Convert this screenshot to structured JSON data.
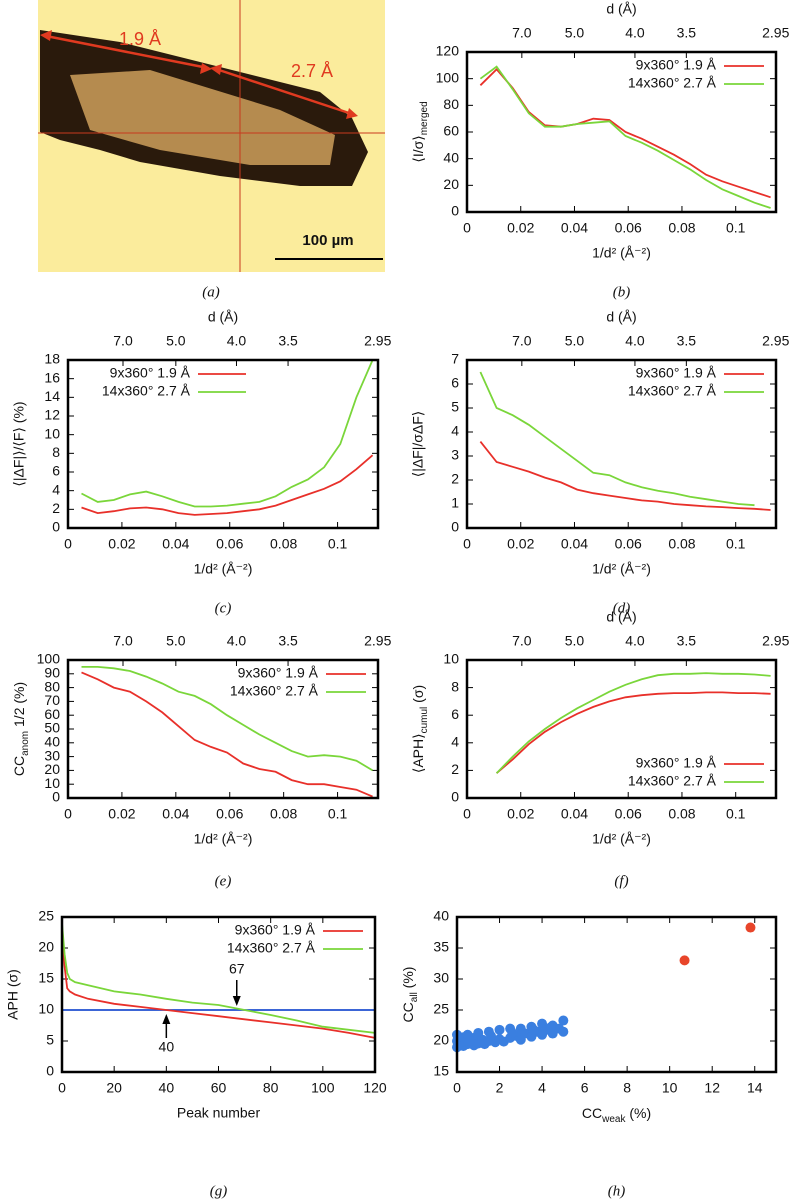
{
  "image": {
    "labels": [
      "1.9 Å",
      "2.7 Å"
    ],
    "scale_bar": "100 µm",
    "caption": "(a)"
  },
  "chart_data": [
    {
      "type": "line",
      "caption": "(b)",
      "xlabel": "1/d² (Å⁻²)",
      "ylabel": [
        {
          "text": "⟨I/σ⟩"
        },
        {
          "text": "merged",
          "sub": true
        }
      ],
      "x2label": "d (Å)",
      "x2ticks": [
        {
          "value": 0.020408,
          "label": "7.0"
        },
        {
          "value": 0.04,
          "label": "5.0"
        },
        {
          "value": 0.0625,
          "label": "4.0"
        },
        {
          "value": 0.081633,
          "label": "3.5"
        },
        {
          "value": 0.11491,
          "label": "2.95"
        }
      ],
      "xlim": [
        0,
        0.115
      ],
      "xticks": [
        0,
        0.02,
        0.04,
        0.06,
        0.08,
        0.1
      ],
      "ylim": [
        0,
        120
      ],
      "yticks": [
        0,
        20,
        40,
        60,
        80,
        100,
        120
      ],
      "legend": "upper right",
      "x": [
        0.005,
        0.011,
        0.017,
        0.023,
        0.029,
        0.035,
        0.041,
        0.047,
        0.053,
        0.059,
        0.065,
        0.071,
        0.077,
        0.083,
        0.089,
        0.095,
        0.101,
        0.107,
        0.113
      ],
      "series": [
        {
          "name": "9x360° 1.9 Å",
          "color": "#e8302a",
          "values": [
            95,
            107,
            93,
            75,
            65,
            64,
            66,
            70,
            69,
            60,
            55,
            49,
            43,
            36,
            28,
            23,
            19,
            15,
            11
          ]
        },
        {
          "name": "14x360° 2.7 Å",
          "color": "#7ad63a",
          "values": [
            100,
            109,
            92,
            74,
            64,
            64,
            66,
            67,
            68,
            57,
            52,
            46,
            39,
            32,
            24,
            17,
            12,
            7,
            3
          ]
        }
      ]
    },
    {
      "type": "line",
      "caption": "(c)",
      "xlabel": "1/d² (Å⁻²)",
      "ylabel": "⟨|ΔF|⟩/⟨F⟩ (%)",
      "x2label": "d (Å)",
      "x2ticks": [
        {
          "value": 0.020408,
          "label": "7.0"
        },
        {
          "value": 0.04,
          "label": "5.0"
        },
        {
          "value": 0.0625,
          "label": "4.0"
        },
        {
          "value": 0.081633,
          "label": "3.5"
        },
        {
          "value": 0.11491,
          "label": "2.95"
        }
      ],
      "xlim": [
        0,
        0.115
      ],
      "xticks": [
        0,
        0.02,
        0.04,
        0.06,
        0.08,
        0.1
      ],
      "ylim": [
        0,
        18
      ],
      "yticks": [
        0,
        2,
        4,
        6,
        8,
        10,
        12,
        14,
        16,
        18
      ],
      "legend": "upper left",
      "x": [
        0.005,
        0.011,
        0.017,
        0.023,
        0.029,
        0.035,
        0.041,
        0.047,
        0.053,
        0.059,
        0.065,
        0.071,
        0.077,
        0.083,
        0.089,
        0.095,
        0.101,
        0.107,
        0.113
      ],
      "series": [
        {
          "name": "9x360° 1.9 Å",
          "color": "#e8302a",
          "values": [
            2.2,
            1.6,
            1.8,
            2.1,
            2.2,
            2.0,
            1.6,
            1.4,
            1.5,
            1.6,
            1.8,
            2.0,
            2.4,
            3.0,
            3.6,
            4.2,
            5.0,
            6.3,
            7.8
          ]
        },
        {
          "name": "14x360° 2.7 Å",
          "color": "#7ad63a",
          "values": [
            3.7,
            2.8,
            3.0,
            3.6,
            3.9,
            3.4,
            2.8,
            2.3,
            2.3,
            2.4,
            2.6,
            2.8,
            3.4,
            4.4,
            5.2,
            6.5,
            9,
            14,
            18
          ]
        }
      ]
    },
    {
      "type": "line",
      "caption": "(d)",
      "xlabel": "1/d² (Å⁻²)",
      "ylabel": "⟨|ΔF|/σΔF⟩",
      "x2label": "d (Å)",
      "x2ticks": [
        {
          "value": 0.020408,
          "label": "7.0"
        },
        {
          "value": 0.04,
          "label": "5.0"
        },
        {
          "value": 0.0625,
          "label": "4.0"
        },
        {
          "value": 0.081633,
          "label": "3.5"
        },
        {
          "value": 0.11491,
          "label": "2.95"
        }
      ],
      "xlim": [
        0,
        0.115
      ],
      "xticks": [
        0,
        0.02,
        0.04,
        0.06,
        0.08,
        0.1
      ],
      "ylim": [
        0,
        7
      ],
      "yticks": [
        0,
        1,
        2,
        3,
        4,
        5,
        6,
        7
      ],
      "legend": "upper right",
      "x": [
        0.005,
        0.011,
        0.017,
        0.023,
        0.029,
        0.035,
        0.041,
        0.047,
        0.053,
        0.059,
        0.065,
        0.071,
        0.077,
        0.083,
        0.089,
        0.095,
        0.101,
        0.107,
        0.113
      ],
      "series": [
        {
          "name": "9x360° 1.9 Å",
          "color": "#e8302a",
          "values": [
            3.6,
            2.75,
            2.55,
            2.35,
            2.1,
            1.9,
            1.6,
            1.45,
            1.35,
            1.25,
            1.15,
            1.1,
            1.0,
            0.95,
            0.9,
            0.87,
            0.83,
            0.8,
            0.75
          ]
        },
        {
          "name": "14x360° 2.7 Å",
          "color": "#7ad63a",
          "values": [
            6.5,
            5.0,
            4.7,
            4.3,
            3.8,
            3.3,
            2.8,
            2.3,
            2.2,
            1.9,
            1.7,
            1.55,
            1.45,
            1.3,
            1.2,
            1.1,
            1.0,
            0.95,
            null
          ]
        }
      ]
    },
    {
      "type": "line",
      "caption": "(e)",
      "xlabel": "1/d² (Å⁻²)",
      "ylabel": [
        {
          "text": "CC"
        },
        {
          "text": "anom",
          "sub": true
        },
        {
          "text": " 1/2 (%)"
        }
      ],
      "x2ticks": [
        {
          "value": 0.020408,
          "label": "7.0"
        },
        {
          "value": 0.04,
          "label": "5.0"
        },
        {
          "value": 0.0625,
          "label": "4.0"
        },
        {
          "value": 0.081633,
          "label": "3.5"
        },
        {
          "value": 0.11491,
          "label": "2.95"
        }
      ],
      "xlim": [
        0,
        0.115
      ],
      "xticks": [
        0,
        0.02,
        0.04,
        0.06,
        0.08,
        0.1
      ],
      "ylim": [
        0,
        100
      ],
      "yticks": [
        0,
        10,
        20,
        30,
        40,
        50,
        60,
        70,
        80,
        90,
        100
      ],
      "legend": "upper right",
      "x": [
        0.005,
        0.011,
        0.017,
        0.023,
        0.029,
        0.035,
        0.041,
        0.047,
        0.053,
        0.059,
        0.065,
        0.071,
        0.077,
        0.083,
        0.089,
        0.095,
        0.101,
        0.107,
        0.113
      ],
      "series": [
        {
          "name": "9x360° 1.9 Å",
          "color": "#e8302a",
          "values": [
            91,
            86,
            80,
            77,
            70,
            62,
            52,
            42,
            37,
            33,
            25,
            21,
            19,
            13,
            10,
            10,
            8,
            6,
            1
          ]
        },
        {
          "name": "14x360° 2.7 Å",
          "color": "#7ad63a",
          "values": [
            95,
            95,
            94,
            92,
            88,
            83,
            77,
            74,
            68,
            60,
            53,
            46,
            40,
            34,
            30,
            31,
            30,
            27,
            20
          ]
        }
      ]
    },
    {
      "type": "line",
      "caption": "(f)",
      "xlabel": "1/d² (Å⁻²)",
      "ylabel": [
        {
          "text": "⟨APH⟩"
        },
        {
          "text": "cumul",
          "sub": true
        },
        {
          "text": " (σ)"
        }
      ],
      "x2label": "d (Å)",
      "x2ticks": [
        {
          "value": 0.020408,
          "label": "7.0"
        },
        {
          "value": 0.04,
          "label": "5.0"
        },
        {
          "value": 0.0625,
          "label": "4.0"
        },
        {
          "value": 0.081633,
          "label": "3.5"
        },
        {
          "value": 0.11491,
          "label": "2.95"
        }
      ],
      "xlim": [
        0,
        0.115
      ],
      "xticks": [
        0,
        0.02,
        0.04,
        0.06,
        0.08,
        0.1
      ],
      "ylim": [
        0,
        10
      ],
      "yticks": [
        0,
        2,
        4,
        6,
        8,
        10
      ],
      "legend": "lower right",
      "x": [
        0.005,
        0.011,
        0.017,
        0.023,
        0.029,
        0.035,
        0.041,
        0.047,
        0.053,
        0.059,
        0.065,
        0.071,
        0.077,
        0.083,
        0.089,
        0.095,
        0.101,
        0.107,
        0.113
      ],
      "series": [
        {
          "name": "9x360° 1.9 Å",
          "color": "#e8302a",
          "values": [
            null,
            1.8,
            2.8,
            3.9,
            4.8,
            5.5,
            6.1,
            6.6,
            7.0,
            7.3,
            7.45,
            7.55,
            7.6,
            7.6,
            7.65,
            7.65,
            7.6,
            7.6,
            7.55
          ]
        },
        {
          "name": "14x360° 2.7 Å",
          "color": "#7ad63a",
          "values": [
            null,
            1.8,
            3.0,
            4.1,
            5.0,
            5.8,
            6.5,
            7.1,
            7.7,
            8.2,
            8.6,
            8.9,
            9.0,
            9.0,
            9.05,
            9.0,
            9.0,
            8.95,
            8.85
          ]
        }
      ]
    },
    {
      "type": "line",
      "caption": "(g)",
      "xlabel": "Peak number",
      "ylabel": "APH (σ)",
      "xlim": [
        0,
        120
      ],
      "xticks": [
        0,
        20,
        40,
        60,
        80,
        100,
        120
      ],
      "ylim": [
        0,
        25
      ],
      "yticks": [
        0,
        5,
        10,
        15,
        20,
        25
      ],
      "legend": "upper right",
      "hline": {
        "value": 10,
        "color": "#1f4fd0"
      },
      "annotations": [
        {
          "label": "67",
          "x": 67,
          "y": 10,
          "side": "above"
        },
        {
          "label": "40",
          "x": 40,
          "y": 10,
          "side": "below"
        }
      ],
      "series": [
        {
          "name": "9x360° 1.9 Å",
          "color": "#e8302a",
          "x": [
            0,
            1,
            2,
            3,
            5,
            10,
            20,
            30,
            40,
            50,
            60,
            70,
            80,
            90,
            100,
            110,
            120
          ],
          "values": [
            21,
            17,
            13.5,
            13,
            12.5,
            11.8,
            11,
            10.5,
            10,
            9.5,
            9,
            8.5,
            8,
            7.5,
            7,
            6.3,
            5.5
          ]
        },
        {
          "name": "14x360° 2.7 Å",
          "color": "#7ad63a",
          "x": [
            0,
            1,
            2,
            3,
            5,
            10,
            20,
            30,
            40,
            50,
            60,
            70,
            80,
            90,
            100,
            110,
            120
          ],
          "values": [
            24,
            19,
            16,
            15,
            14.5,
            14,
            13,
            12.5,
            11.8,
            11.2,
            10.8,
            10,
            9.2,
            8.3,
            7.3,
            6.8,
            6.3
          ]
        }
      ]
    },
    {
      "type": "scatter",
      "caption": "(h)",
      "xlabel": [
        {
          "text": "CC"
        },
        {
          "text": "weak",
          "sub": true
        },
        {
          "text": " (%)"
        }
      ],
      "ylabel": [
        {
          "text": "CC"
        },
        {
          "text": "all",
          "sub": true
        },
        {
          "text": " (%)"
        }
      ],
      "xlim": [
        0,
        15
      ],
      "xticks": [
        0,
        2,
        4,
        6,
        8,
        10,
        12,
        14
      ],
      "ylim": [
        15,
        40
      ],
      "yticks": [
        15,
        20,
        25,
        30,
        35,
        40
      ],
      "series": [
        {
          "color": "#3a7fe0",
          "x": [
            0,
            0,
            0,
            0.3,
            0.3,
            0.5,
            0.5,
            0.8,
            0.8,
            1,
            1,
            1.2,
            1.3,
            1.5,
            1.5,
            1.8,
            2,
            2,
            2.2,
            2.5,
            2.5,
            2.8,
            3,
            3,
            3.2,
            3.5,
            3.5,
            3.8,
            4,
            4,
            4.2,
            4.5,
            4.5,
            4.8,
            5,
            5,
            0.6,
            1.6,
            2.6,
            3.6,
            4.4
          ],
          "values": [
            19,
            20,
            21,
            19.2,
            20.6,
            19.5,
            21,
            19.3,
            20.5,
            19.6,
            21.3,
            20.2,
            19.5,
            20,
            21.5,
            19.8,
            20.3,
            21.8,
            19.9,
            20.5,
            22,
            20.8,
            20.2,
            22,
            21.2,
            20.7,
            22.3,
            21.5,
            21,
            22.8,
            21.8,
            21.2,
            22.5,
            22,
            21.5,
            23.3,
            20,
            20.8,
            21.3,
            21.8,
            22.2
          ]
        },
        {
          "color": "#e8452a",
          "x": [
            10.7,
            13.8
          ],
          "values": [
            33,
            38.3
          ]
        }
      ]
    }
  ]
}
